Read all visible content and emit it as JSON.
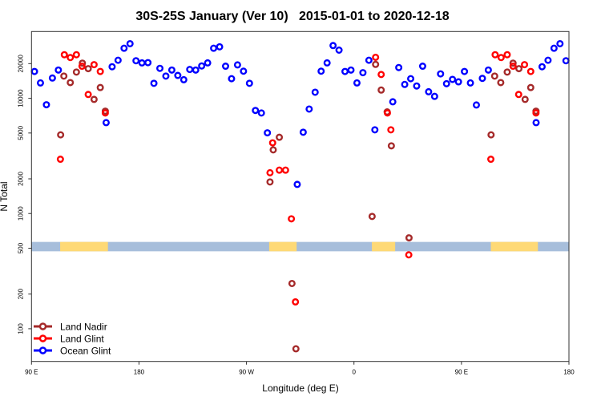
{
  "chart_data": {
    "type": "scatter",
    "title": "30S-25S January (Ver 10)   2015-01-01 to 2020-12-18",
    "xlabel": "Longitude (deg E)",
    "ylabel": "N Total",
    "xlim": [
      90,
      540
    ],
    "ylim": [
      52,
      38000
    ],
    "yscale": "log",
    "grid": false,
    "legend_placement": "bottom-left",
    "x_ticks": [
      {
        "value": 90,
        "label": "90 E"
      },
      {
        "value": 180,
        "label": "180"
      },
      {
        "value": 270,
        "label": "90 W"
      },
      {
        "value": 360,
        "label": "0"
      },
      {
        "value": 450,
        "label": "90 E"
      },
      {
        "value": 540,
        "label": "180"
      }
    ],
    "y_ticks": [
      {
        "value": 100,
        "label": "100"
      },
      {
        "value": 200,
        "label": "200"
      },
      {
        "value": 500,
        "label": "500"
      },
      {
        "value": 1000,
        "label": "1000"
      },
      {
        "value": 2000,
        "label": "2000"
      },
      {
        "value": 5000,
        "label": "5000"
      },
      {
        "value": 10000,
        "label": "10000"
      },
      {
        "value": 20000,
        "label": "20000"
      }
    ],
    "surface_band": {
      "value_range": [
        470,
        567
      ],
      "ocean_color": "#a7bedb",
      "land_color": "#fed976",
      "land_ranges": [
        [
          114,
          154
        ],
        [
          289,
          312
        ],
        [
          375,
          394.5
        ],
        [
          474.6,
          514
        ]
      ]
    },
    "series": [
      {
        "name": "Land Nadir",
        "color": "#a52a2a",
        "points": [
          [
            114.4,
            4820
          ],
          [
            117.1,
            15600
          ],
          [
            122.5,
            13700
          ],
          [
            127.6,
            16900
          ],
          [
            132.6,
            20200
          ],
          [
            137.5,
            18100
          ],
          [
            142.4,
            9790
          ],
          [
            147.6,
            12400
          ],
          [
            151.8,
            7740
          ],
          [
            289.7,
            1880
          ],
          [
            292.4,
            3570
          ],
          [
            297.5,
            4590
          ],
          [
            308.1,
            247
          ],
          [
            311.4,
            67
          ],
          [
            375.2,
            944
          ],
          [
            378.1,
            19700
          ],
          [
            382.8,
            11800
          ],
          [
            387.8,
            7620
          ],
          [
            391.3,
            3870
          ],
          [
            406.1,
            615
          ],
          [
            474.8,
            4820
          ],
          [
            477.8,
            15600
          ],
          [
            482.9,
            13700
          ],
          [
            488.3,
            16900
          ],
          [
            493.2,
            20200
          ],
          [
            498.1,
            18100
          ],
          [
            503.3,
            9790
          ],
          [
            508.0,
            12400
          ],
          [
            512.4,
            7740
          ]
        ]
      },
      {
        "name": "Land Glint",
        "color": "#ff0000",
        "points": [
          [
            114.2,
            2960
          ],
          [
            117.5,
            23900
          ],
          [
            122.5,
            22600
          ],
          [
            127.6,
            23900
          ],
          [
            132.3,
            19000
          ],
          [
            137.5,
            10800
          ],
          [
            142.4,
            19600
          ],
          [
            147.6,
            17100
          ],
          [
            151.8,
            7460
          ],
          [
            289.7,
            2260
          ],
          [
            291.9,
            4110
          ],
          [
            297.5,
            2380
          ],
          [
            302.7,
            2380
          ],
          [
            307.6,
            900
          ],
          [
            311.0,
            171
          ],
          [
            378.1,
            22700
          ],
          [
            382.8,
            16100
          ],
          [
            388.0,
            7460
          ],
          [
            390.9,
            5330
          ],
          [
            405.9,
            438
          ],
          [
            474.6,
            2960
          ],
          [
            478.2,
            23900
          ],
          [
            483.2,
            22600
          ],
          [
            488.3,
            23900
          ],
          [
            493.2,
            19000
          ],
          [
            497.9,
            10800
          ],
          [
            502.8,
            19600
          ],
          [
            508.0,
            17100
          ],
          [
            512.4,
            7460
          ]
        ]
      },
      {
        "name": "Ocean Glint",
        "color": "#0000ff",
        "points": [
          [
            92.5,
            17100
          ],
          [
            97.5,
            13600
          ],
          [
            102.5,
            8800
          ],
          [
            107.5,
            15000
          ],
          [
            112.5,
            17600
          ],
          [
            152.5,
            6150
          ],
          [
            157.5,
            18800
          ],
          [
            162.5,
            21400
          ],
          [
            167.5,
            27200
          ],
          [
            172.5,
            29800
          ],
          [
            177.5,
            21200
          ],
          [
            182.5,
            20300
          ],
          [
            187.5,
            20400
          ],
          [
            192.5,
            13500
          ],
          [
            197.5,
            18200
          ],
          [
            202.5,
            15600
          ],
          [
            207.5,
            17600
          ],
          [
            212.5,
            15800
          ],
          [
            217.5,
            14500
          ],
          [
            222.5,
            17800
          ],
          [
            227.5,
            17600
          ],
          [
            232.5,
            19100
          ],
          [
            237.5,
            20300
          ],
          [
            242.5,
            27200
          ],
          [
            247.5,
            28000
          ],
          [
            252.5,
            19000
          ],
          [
            257.5,
            14800
          ],
          [
            262.5,
            19500
          ],
          [
            267.5,
            17200
          ],
          [
            272.5,
            13500
          ],
          [
            277.5,
            7850
          ],
          [
            282.5,
            7460
          ],
          [
            287.5,
            5020
          ],
          [
            312.5,
            1790
          ],
          [
            317.5,
            5080
          ],
          [
            322.5,
            8070
          ],
          [
            327.5,
            11300
          ],
          [
            332.5,
            17200
          ],
          [
            337.5,
            20300
          ],
          [
            342.5,
            28700
          ],
          [
            347.5,
            26200
          ],
          [
            352.5,
            17100
          ],
          [
            357.5,
            17600
          ],
          [
            362.5,
            13600
          ],
          [
            367.5,
            16700
          ],
          [
            372.5,
            21400
          ],
          [
            377.5,
            5330
          ],
          [
            392.5,
            9330
          ],
          [
            397.5,
            18500
          ],
          [
            402.5,
            13200
          ],
          [
            407.5,
            14800
          ],
          [
            412.5,
            12800
          ],
          [
            417.5,
            19000
          ],
          [
            422.5,
            11400
          ],
          [
            427.5,
            10400
          ],
          [
            432.5,
            16300
          ],
          [
            437.5,
            13400
          ],
          [
            442.5,
            14600
          ],
          [
            447.5,
            13900
          ],
          [
            452.5,
            17100
          ],
          [
            457.5,
            13600
          ],
          [
            462.5,
            8750
          ],
          [
            467.5,
            14900
          ],
          [
            472.5,
            17600
          ],
          [
            512.5,
            6150
          ],
          [
            517.5,
            18800
          ],
          [
            522.5,
            21400
          ],
          [
            527.5,
            27200
          ],
          [
            532.5,
            29800
          ],
          [
            537.5,
            21200
          ]
        ]
      }
    ]
  }
}
